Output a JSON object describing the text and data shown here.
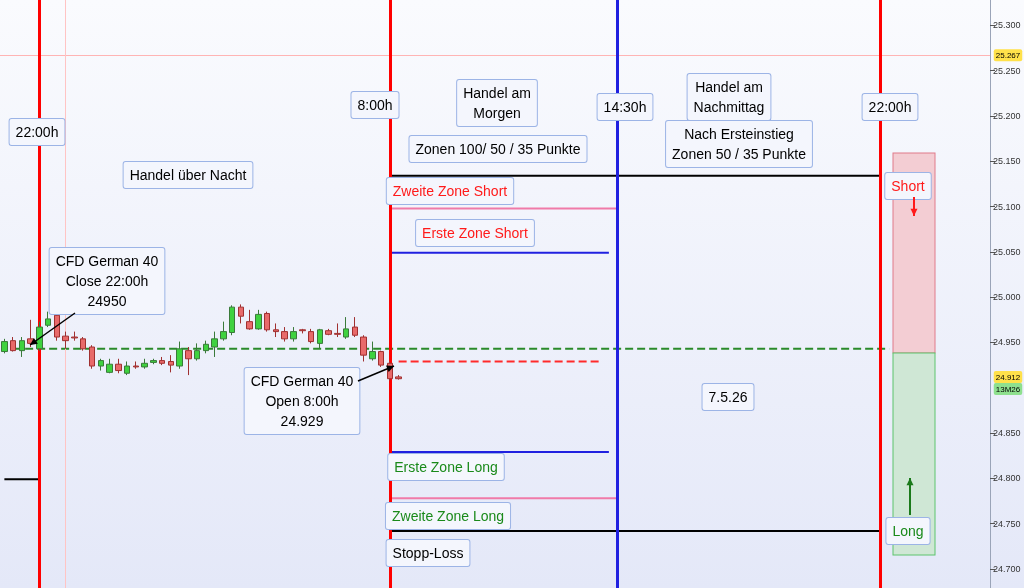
{
  "chart_data": {
    "type": "candlestick",
    "categories": [
      null,
      null,
      null,
      null,
      null,
      null,
      null,
      null,
      null,
      null,
      null,
      null,
      null,
      null,
      null,
      null,
      null,
      null,
      null,
      null,
      null,
      null,
      null,
      null,
      null,
      null,
      null,
      null,
      null,
      null,
      null,
      null,
      null,
      null,
      null,
      null,
      null,
      null,
      null,
      null,
      null,
      null,
      null,
      null,
      null,
      null,
      null,
      null,
      null,
      null,
      null,
      null,
      null,
      null,
      null,
      null,
      null,
      null,
      null,
      null,
      null,
      null,
      null,
      null,
      null,
      null,
      null,
      null,
      null,
      null,
      null,
      null,
      null,
      null,
      null,
      null,
      null,
      null,
      null,
      null,
      null,
      null,
      null,
      null,
      null,
      null,
      null,
      null,
      null,
      null,
      null,
      null,
      null,
      null,
      null,
      null,
      null,
      null,
      null,
      null,
      null,
      null,
      null,
      null,
      null,
      null,
      null,
      null,
      null,
      null,
      null,
      null,
      null
    ],
    "ohlc": [
      [
        24940,
        24954,
        24938,
        24951
      ],
      [
        24952,
        24956,
        24940,
        24941
      ],
      [
        24941,
        24956,
        24934,
        24952
      ],
      [
        24954,
        24975,
        24945,
        24949
      ],
      [
        24943,
        24973,
        24941,
        24967
      ],
      [
        24969,
        24984,
        24967,
        24976
      ],
      [
        24980,
        24982,
        24952,
        24956
      ],
      [
        24957,
        24962,
        24943,
        24952
      ],
      [
        24956,
        24962,
        24952,
        24955
      ],
      [
        24954,
        24956,
        24941,
        24943
      ],
      [
        24945,
        24947,
        24921,
        24924
      ],
      [
        24924,
        24932,
        24919,
        24930
      ],
      [
        24917,
        24932,
        24916,
        24926
      ],
      [
        24926,
        24932,
        24916,
        24919
      ],
      [
        24916,
        24929,
        24914,
        24924
      ],
      [
        24924,
        24929,
        24921,
        24923
      ],
      [
        24923,
        24932,
        24921,
        24927
      ],
      [
        24928,
        24932,
        24926,
        24930
      ],
      [
        24930,
        24934,
        24925,
        24927
      ],
      [
        24929,
        24936,
        24917,
        24925
      ],
      [
        24924,
        24951,
        24921,
        24943
      ],
      [
        24941,
        24945,
        24914,
        24932
      ],
      [
        24932,
        24949,
        24930,
        24941
      ],
      [
        24941,
        24952,
        24938,
        24948
      ],
      [
        24945,
        24962,
        24934,
        24954
      ],
      [
        24954,
        24973,
        24952,
        24962
      ],
      [
        24961,
        24991,
        24958,
        24989
      ],
      [
        24989,
        24992,
        24971,
        24979
      ],
      [
        24973,
        24986,
        24964,
        24965
      ],
      [
        24965,
        24986,
        24964,
        24981
      ],
      [
        24982,
        24984,
        24962,
        24964
      ],
      [
        24964,
        24971,
        24956,
        24962
      ],
      [
        24962,
        24967,
        24951,
        24954
      ],
      [
        24954,
        24967,
        24951,
        24962
      ],
      [
        24964,
        24965,
        24960,
        24963
      ],
      [
        24962,
        24965,
        24949,
        24951
      ],
      [
        24949,
        24965,
        24943,
        24964
      ],
      [
        24963,
        24965,
        24958,
        24959
      ],
      [
        24960,
        24971,
        24956,
        24959
      ],
      [
        24956,
        24978,
        24954,
        24965
      ],
      [
        24967,
        24978,
        24956,
        24958
      ],
      [
        24956,
        24958,
        24929,
        24936
      ],
      [
        24932,
        24951,
        24930,
        24940
      ],
      [
        24940,
        24941,
        24923,
        24925
      ],
      [
        24927,
        24929,
        24908,
        24910
      ],
      [
        24912,
        24914,
        24909,
        24910
      ],
      null,
      null,
      null,
      null,
      null,
      null,
      null,
      null,
      null,
      null,
      null,
      null,
      null,
      null,
      null,
      null,
      null,
      null,
      null,
      null,
      null,
      null,
      null,
      null,
      null,
      null,
      null,
      null,
      null,
      null,
      null,
      null,
      null,
      null,
      null,
      null,
      null,
      null,
      null,
      null,
      null,
      null,
      null,
      null,
      null,
      null,
      null,
      null,
      null,
      null,
      null,
      null,
      null,
      null,
      null,
      null,
      null,
      null,
      null,
      null,
      null,
      null,
      null,
      null,
      null,
      null,
      null
    ],
    "series": [
      {
        "type": "line",
        "color": "#000000",
        "line_style": "solid",
        "values": [
          null,
          null,
          null,
          null,
          null,
          null,
          null,
          null,
          null,
          null,
          null,
          null,
          null,
          null,
          null,
          null,
          null,
          null,
          null,
          null,
          null,
          null,
          null,
          null,
          null,
          null,
          null,
          null,
          null,
          null,
          null,
          null,
          null,
          null,
          null,
          null,
          null,
          null,
          null,
          null,
          null,
          null,
          null,
          null,
          25134,
          25134,
          25134,
          25134,
          25134,
          25134,
          25134,
          25134,
          25134,
          25134,
          25134,
          25134,
          25134,
          25134,
          25134,
          25134,
          25134,
          25134,
          25134,
          25134,
          25134,
          25134,
          25134,
          25134,
          25134,
          25134,
          25134,
          25134,
          25134,
          25134,
          25134,
          25134,
          25134,
          25134,
          25134,
          25134,
          25134,
          25134,
          25134,
          25134,
          25134,
          25134,
          25134,
          25134,
          25134,
          25134,
          25134,
          25134,
          25134,
          25134,
          25134,
          25134,
          25134,
          25134,
          25134,
          25134,
          25134,
          null,
          null,
          null,
          null,
          null,
          null,
          null,
          null,
          null,
          null,
          null,
          null
        ]
      },
      {
        "type": "line",
        "color": "#f07aa8",
        "line_style": "solid",
        "values": [
          null,
          null,
          null,
          null,
          null,
          null,
          null,
          null,
          null,
          null,
          null,
          null,
          null,
          null,
          null,
          null,
          null,
          null,
          null,
          null,
          null,
          null,
          null,
          null,
          null,
          null,
          null,
          null,
          null,
          null,
          null,
          null,
          null,
          null,
          null,
          null,
          null,
          null,
          null,
          null,
          null,
          null,
          null,
          null,
          25098,
          25098,
          25098,
          25098,
          25098,
          25098,
          25098,
          25098,
          25098,
          25098,
          25098,
          25098,
          25098,
          25098,
          25098,
          25098,
          25098,
          25098,
          25098,
          25098,
          25098,
          25098,
          25098,
          25098,
          25098,
          25098,
          25098,
          null,
          null,
          null,
          null,
          null,
          null,
          null,
          null,
          null,
          null,
          null,
          null,
          null,
          null,
          null,
          null,
          null,
          null,
          null,
          null,
          null,
          null,
          null,
          null,
          null,
          null,
          null,
          null,
          null,
          null,
          null,
          null,
          null,
          null,
          null,
          null,
          null,
          null,
          null,
          null,
          null,
          null
        ]
      },
      {
        "type": "line",
        "color": "#2020e0",
        "line_style": "solid",
        "values": [
          null,
          null,
          null,
          null,
          null,
          null,
          null,
          null,
          null,
          null,
          null,
          null,
          null,
          null,
          null,
          null,
          null,
          null,
          null,
          null,
          null,
          null,
          null,
          null,
          null,
          null,
          null,
          null,
          null,
          null,
          null,
          null,
          null,
          null,
          null,
          null,
          null,
          null,
          null,
          null,
          null,
          null,
          null,
          null,
          25049,
          25049,
          25049,
          25049,
          25049,
          25049,
          25049,
          25049,
          25049,
          25049,
          25049,
          25049,
          25049,
          25049,
          25049,
          25049,
          25049,
          25049,
          25049,
          25049,
          25049,
          25049,
          25049,
          25049,
          25049,
          25049,
          null,
          null,
          null,
          null,
          null,
          null,
          null,
          null,
          null,
          null,
          null,
          null,
          null,
          null,
          null,
          null,
          null,
          null,
          null,
          null,
          null,
          null,
          null,
          null,
          null,
          null,
          null,
          null,
          null,
          null,
          null,
          null,
          null,
          null,
          null,
          null,
          null,
          null,
          null,
          null,
          null,
          null,
          null
        ]
      },
      {
        "type": "line",
        "color": "#2020e0",
        "line_style": "solid",
        "values": [
          null,
          null,
          null,
          null,
          null,
          null,
          null,
          null,
          null,
          null,
          null,
          null,
          null,
          null,
          null,
          null,
          null,
          null,
          null,
          null,
          null,
          null,
          null,
          null,
          null,
          null,
          null,
          null,
          null,
          null,
          null,
          null,
          null,
          null,
          null,
          null,
          null,
          null,
          null,
          null,
          null,
          null,
          null,
          null,
          24829,
          24829,
          24829,
          24829,
          24829,
          24829,
          24829,
          24829,
          24829,
          24829,
          24829,
          24829,
          24829,
          24829,
          24829,
          24829,
          24829,
          24829,
          24829,
          24829,
          24829,
          24829,
          24829,
          24829,
          24829,
          24829,
          null,
          null,
          null,
          null,
          null,
          null,
          null,
          null,
          null,
          null,
          null,
          null,
          null,
          null,
          null,
          null,
          null,
          null,
          null,
          null,
          null,
          null,
          null,
          null,
          null,
          null,
          null,
          null,
          null,
          null,
          null,
          null,
          null,
          null,
          null,
          null,
          null,
          null,
          null,
          null,
          null,
          null,
          null
        ]
      },
      {
        "type": "line",
        "color": "#f07aa8",
        "line_style": "solid",
        "values": [
          null,
          null,
          null,
          null,
          null,
          null,
          null,
          null,
          null,
          null,
          null,
          null,
          null,
          null,
          null,
          null,
          null,
          null,
          null,
          null,
          null,
          null,
          null,
          null,
          null,
          null,
          null,
          null,
          null,
          null,
          null,
          null,
          null,
          null,
          null,
          null,
          null,
          null,
          null,
          null,
          null,
          null,
          null,
          null,
          24778,
          24778,
          24778,
          24778,
          24778,
          24778,
          24778,
          24778,
          24778,
          24778,
          24778,
          24778,
          24778,
          24778,
          24778,
          24778,
          24778,
          24778,
          24778,
          24778,
          24778,
          24778,
          24778,
          24778,
          24778,
          24778,
          24778,
          null,
          null,
          null,
          null,
          null,
          null,
          null,
          null,
          null,
          null,
          null,
          null,
          null,
          null,
          null,
          null,
          null,
          null,
          null,
          null,
          null,
          null,
          null,
          null,
          null,
          null,
          null,
          null,
          null,
          null,
          null,
          null,
          null,
          null,
          null,
          null,
          null,
          null,
          null,
          null,
          null,
          null
        ]
      },
      {
        "type": "line",
        "color": "#000000",
        "line_style": "solid",
        "values": [
          null,
          null,
          null,
          null,
          null,
          null,
          null,
          null,
          null,
          null,
          null,
          null,
          null,
          null,
          null,
          null,
          null,
          null,
          null,
          null,
          null,
          null,
          null,
          null,
          null,
          null,
          null,
          null,
          null,
          null,
          null,
          null,
          null,
          null,
          null,
          null,
          null,
          null,
          null,
          null,
          null,
          null,
          null,
          null,
          24742,
          24742,
          24742,
          24742,
          24742,
          24742,
          24742,
          24742,
          24742,
          24742,
          24742,
          24742,
          24742,
          24742,
          24742,
          24742,
          24742,
          24742,
          24742,
          24742,
          24742,
          24742,
          24742,
          24742,
          24742,
          24742,
          24742,
          24742,
          24742,
          24742,
          24742,
          24742,
          24742,
          24742,
          24742,
          24742,
          24742,
          24742,
          24742,
          24742,
          24742,
          24742,
          24742,
          24742,
          24742,
          24742,
          24742,
          24742,
          24742,
          24742,
          24742,
          24742,
          24742,
          24742,
          24742,
          24742,
          24742,
          null,
          null,
          null,
          null,
          null,
          null,
          null,
          null,
          null,
          null,
          null,
          null
        ]
      },
      {
        "type": "line",
        "color": "#000000",
        "line_style": "solid",
        "values": [
          24799,
          24799,
          24799,
          24799,
          24799,
          null,
          null,
          null,
          null,
          null,
          null,
          null,
          null,
          null,
          null,
          null,
          null,
          null,
          null,
          null,
          null,
          null,
          null,
          null,
          null,
          null,
          null,
          null,
          null,
          null,
          null,
          null,
          null,
          null,
          null,
          null,
          null,
          null,
          null,
          null,
          null,
          null,
          null,
          null,
          null,
          null,
          null,
          null,
          null,
          null,
          null,
          null,
          null,
          null,
          null,
          null,
          null,
          null,
          null,
          null,
          null,
          null,
          null,
          null,
          null,
          null,
          null,
          null,
          null,
          null,
          null,
          null,
          null,
          null,
          null,
          null,
          null,
          null,
          null,
          null,
          null,
          null,
          null,
          null,
          null,
          null,
          null,
          null,
          null,
          null,
          null,
          null,
          null,
          null,
          null,
          null,
          null,
          null,
          null,
          null,
          null,
          null,
          null,
          null,
          null,
          null,
          null,
          null,
          null,
          null,
          null,
          null,
          null
        ]
      },
      {
        "type": "line",
        "color": "#2a8a2a",
        "line_style": "dashed",
        "values": [
          null,
          24943,
          24943,
          24943,
          24943,
          24943,
          24943,
          24943,
          24943,
          24943,
          24943,
          24943,
          24943,
          24943,
          24943,
          24943,
          24943,
          24943,
          24943,
          24943,
          24943,
          24943,
          24943,
          24943,
          24943,
          24943,
          24943,
          24943,
          24943,
          24943,
          24943,
          24943,
          24943,
          24943,
          24943,
          24943,
          24943,
          24943,
          24943,
          24943,
          24943,
          24943,
          24943,
          24943,
          24943,
          24943,
          24943,
          24943,
          24943,
          24943,
          24943,
          24943,
          24943,
          24943,
          24943,
          24943,
          24943,
          24943,
          24943,
          24943,
          24943,
          24943,
          24943,
          24943,
          24943,
          24943,
          24943,
          24943,
          24943,
          24943,
          24943,
          24943,
          24943,
          24943,
          24943,
          24943,
          24943,
          24943,
          24943,
          24943,
          24943,
          24943,
          24943,
          24943,
          24943,
          24943,
          24943,
          24943,
          24943,
          24943,
          24943,
          24943,
          24943,
          24943,
          24943,
          24943,
          24943,
          24943,
          24943,
          24943,
          24943,
          24943,
          null,
          null,
          null,
          null,
          null,
          null,
          null,
          null,
          null,
          null,
          null
        ]
      },
      {
        "type": "line",
        "color": "#ff2a2a",
        "line_style": "dashed",
        "values": [
          null,
          null,
          null,
          null,
          null,
          null,
          null,
          null,
          null,
          null,
          null,
          null,
          null,
          null,
          null,
          null,
          null,
          null,
          null,
          null,
          null,
          null,
          null,
          null,
          null,
          null,
          null,
          null,
          null,
          null,
          null,
          null,
          null,
          null,
          null,
          null,
          null,
          null,
          null,
          null,
          null,
          null,
          null,
          null,
          null,
          24929,
          24929,
          24929,
          24929,
          24929,
          24929,
          24929,
          24929,
          24929,
          24929,
          24929,
          24929,
          24929,
          24929,
          24929,
          24929,
          24929,
          24929,
          24929,
          24929,
          24929,
          24929,
          24929,
          24929,
          null,
          null,
          null,
          null,
          null,
          null,
          null,
          null,
          null,
          null,
          null,
          null,
          null,
          null,
          null,
          null,
          null,
          null,
          null,
          null,
          null,
          null,
          null,
          null,
          null,
          null,
          null,
          null,
          null,
          null,
          null,
          null,
          null,
          null,
          null,
          null,
          null,
          null,
          null,
          null,
          null,
          null,
          null,
          null
        ]
      }
    ],
    "ref_lines": [
      {
        "axis": "y",
        "value": 25267,
        "label": "25.267",
        "color": "#ffb4b4"
      }
    ],
    "annotations": [
      "Handel am\nMorgen",
      "Handel am\nNachmittag",
      "Zonen 100/ 50 / 35 Punkte",
      "Nach Ersteinstieg\nZonen 50 / 35 Punkte",
      "Handel über Nacht",
      "Zweite Zone Short",
      "Erste Zone Short",
      "CFD German 40\nClose 22:00h\n24950",
      "CFD German 40\nOpen 8:00h\n24.929",
      "7.5.26",
      "Erste Zone Long",
      "Zweite Zone Long",
      "Stopp-Loss",
      "Short",
      "Long",
      "24.912",
      "13M26",
      "22:00h",
      "8:00h",
      "14:30h",
      "22:00h"
    ],
    "ylim": [
      24679,
      25328
    ],
    "yticks": [
      {
        "value": 24700,
        "label": "24.700"
      },
      {
        "value": 24750,
        "label": "24.750"
      },
      {
        "value": 24800,
        "label": "24.800"
      },
      {
        "value": 24850,
        "label": "24.850"
      },
      {
        "value": 24950,
        "label": "24.950"
      },
      {
        "value": 25000,
        "label": "25.000"
      },
      {
        "value": 25050,
        "label": "25.050"
      },
      {
        "value": 25100,
        "label": "25.100"
      },
      {
        "value": 25150,
        "label": "25.150"
      },
      {
        "value": 25200,
        "label": "25.200"
      },
      {
        "value": 25250,
        "label": "25.250"
      },
      {
        "value": 25300,
        "label": "25.300"
      }
    ],
    "tick_labels": "y"
  }
}
